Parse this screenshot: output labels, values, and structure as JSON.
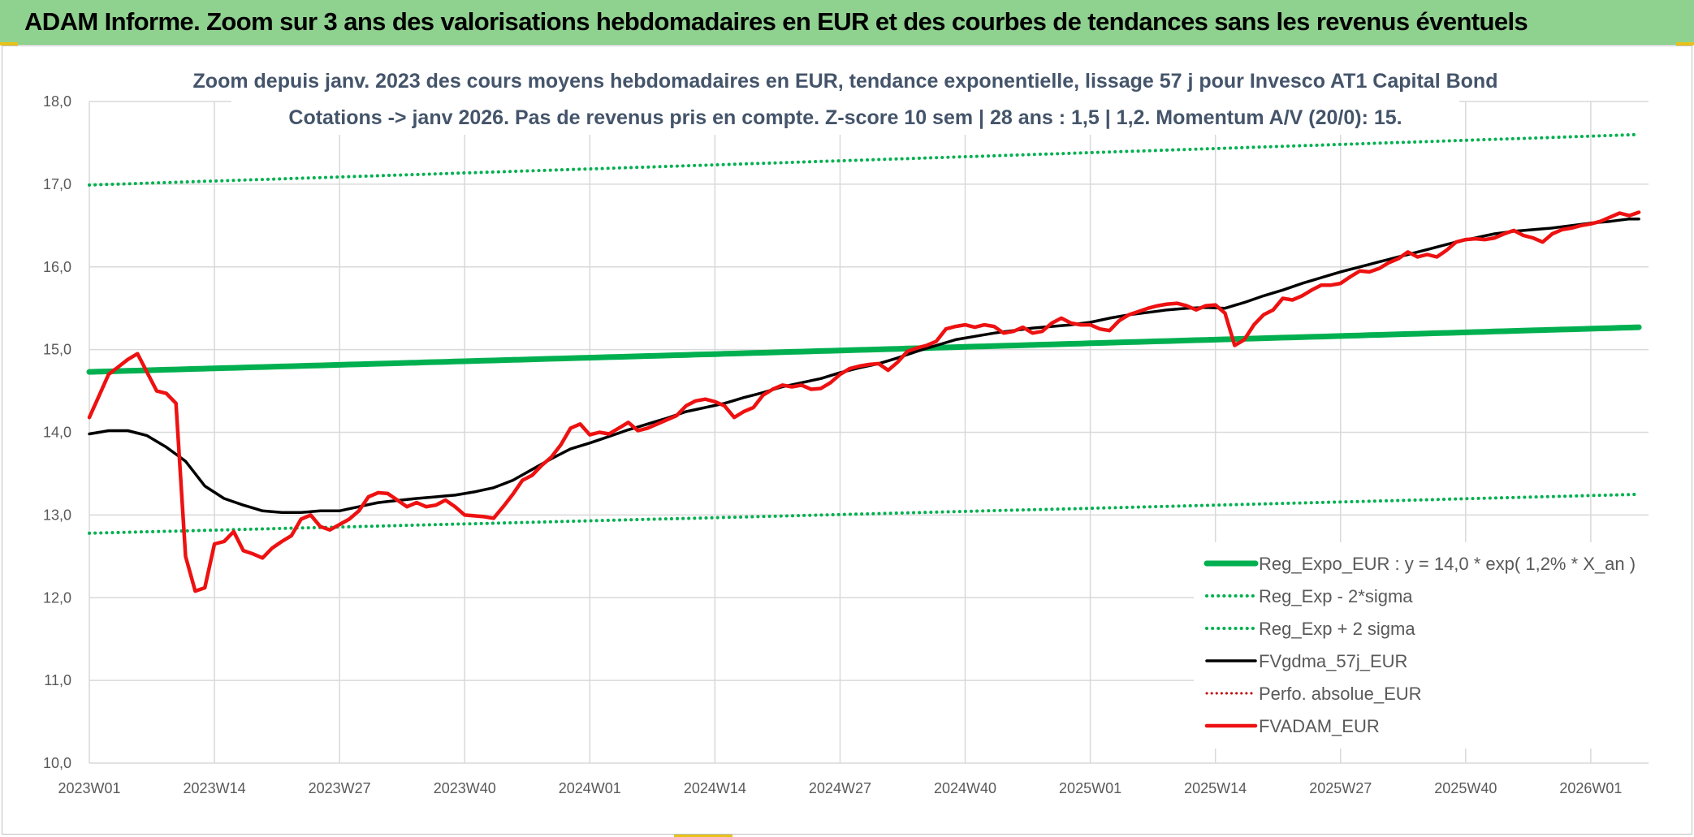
{
  "header": {
    "title": "ADAM Informe. Zoom sur 3 ans des valorisations hebdomadaires en EUR et des courbes de tendances sans les revenus éventuels"
  },
  "chart_data": {
    "type": "line",
    "title_line1": "Zoom depuis janv. 2023 des cours moyens hebdomadaires en EUR, tendance exponentielle, lissage 57 j pour Invesco AT1 Capital Bond",
    "title_line2": "Cotations -> janv 2026. Pas de revenus pris en compte. Z-score 10 sem | 28 ans : 1,5 | 1,2. Momentum A/V (20/0): 15.",
    "ylim": [
      10.0,
      18.0
    ],
    "y_ticks": [
      "10,0",
      "11,0",
      "12,0",
      "13,0",
      "14,0",
      "15,0",
      "16,0",
      "17,0",
      "18,0"
    ],
    "x_count": 162,
    "x_ticks": [
      {
        "i": 0,
        "label": "2023W01"
      },
      {
        "i": 13,
        "label": "2023W14"
      },
      {
        "i": 26,
        "label": "2023W27"
      },
      {
        "i": 39,
        "label": "2023W40"
      },
      {
        "i": 52,
        "label": "2024W01"
      },
      {
        "i": 65,
        "label": "2024W14"
      },
      {
        "i": 78,
        "label": "2024W27"
      },
      {
        "i": 91,
        "label": "2024W40"
      },
      {
        "i": 104,
        "label": "2025W01"
      },
      {
        "i": 117,
        "label": "2025W14"
      },
      {
        "i": 130,
        "label": "2025W27"
      },
      {
        "i": 143,
        "label": "2025W40"
      },
      {
        "i": 156,
        "label": "2026W01"
      }
    ],
    "trend": {
      "start": 14.73,
      "end": 15.27
    },
    "band_lower": {
      "start": 12.78,
      "end": 13.25
    },
    "band_upper": {
      "start": 16.99,
      "end": 17.6
    },
    "fvadam_keypoints": [
      [
        0,
        14.18
      ],
      [
        2,
        14.7
      ],
      [
        4,
        14.88
      ],
      [
        5,
        14.95
      ],
      [
        7,
        14.5
      ],
      [
        8,
        14.47
      ],
      [
        9,
        14.35
      ],
      [
        10,
        12.5
      ],
      [
        11,
        12.08
      ],
      [
        12,
        12.12
      ],
      [
        13,
        12.65
      ],
      [
        14,
        12.68
      ],
      [
        15,
        12.8
      ],
      [
        16,
        12.57
      ],
      [
        17,
        12.53
      ],
      [
        18,
        12.48
      ],
      [
        19,
        12.6
      ],
      [
        20,
        12.68
      ],
      [
        21,
        12.75
      ],
      [
        22,
        12.95
      ],
      [
        23,
        13.0
      ],
      [
        24,
        12.86
      ],
      [
        25,
        12.82
      ],
      [
        27,
        12.95
      ],
      [
        28,
        13.05
      ],
      [
        29,
        13.22
      ],
      [
        30,
        13.27
      ],
      [
        31,
        13.26
      ],
      [
        32,
        13.18
      ],
      [
        33,
        13.1
      ],
      [
        34,
        13.15
      ],
      [
        35,
        13.1
      ],
      [
        36,
        13.12
      ],
      [
        37,
        13.18
      ],
      [
        38,
        13.1
      ],
      [
        39,
        13.0
      ],
      [
        41,
        12.98
      ],
      [
        42,
        12.96
      ],
      [
        43,
        13.1
      ],
      [
        44,
        13.25
      ],
      [
        45,
        13.42
      ],
      [
        46,
        13.48
      ],
      [
        47,
        13.6
      ],
      [
        48,
        13.7
      ],
      [
        49,
        13.85
      ],
      [
        50,
        14.05
      ],
      [
        51,
        14.1
      ],
      [
        52,
        13.97
      ],
      [
        53,
        14.0
      ],
      [
        54,
        13.98
      ],
      [
        55,
        14.05
      ],
      [
        56,
        14.12
      ],
      [
        57,
        14.02
      ],
      [
        58,
        14.05
      ],
      [
        59,
        14.1
      ],
      [
        60,
        14.15
      ],
      [
        61,
        14.2
      ],
      [
        62,
        14.32
      ],
      [
        63,
        14.38
      ],
      [
        64,
        14.4
      ],
      [
        65,
        14.37
      ],
      [
        66,
        14.32
      ],
      [
        67,
        14.18
      ],
      [
        68,
        14.25
      ],
      [
        69,
        14.3
      ],
      [
        70,
        14.45
      ],
      [
        71,
        14.52
      ],
      [
        72,
        14.57
      ],
      [
        73,
        14.55
      ],
      [
        74,
        14.57
      ],
      [
        75,
        14.52
      ],
      [
        76,
        14.53
      ],
      [
        77,
        14.6
      ],
      [
        78,
        14.7
      ],
      [
        79,
        14.77
      ],
      [
        80,
        14.8
      ],
      [
        81,
        14.82
      ],
      [
        82,
        14.83
      ],
      [
        83,
        14.75
      ],
      [
        84,
        14.85
      ],
      [
        85,
        14.98
      ],
      [
        86,
        15.02
      ],
      [
        87,
        15.05
      ],
      [
        88,
        15.1
      ],
      [
        89,
        15.25
      ],
      [
        90,
        15.28
      ],
      [
        91,
        15.3
      ],
      [
        92,
        15.27
      ],
      [
        93,
        15.3
      ],
      [
        94,
        15.28
      ],
      [
        95,
        15.2
      ],
      [
        96,
        15.22
      ],
      [
        97,
        15.27
      ],
      [
        98,
        15.2
      ],
      [
        99,
        15.22
      ],
      [
        100,
        15.32
      ],
      [
        101,
        15.38
      ],
      [
        102,
        15.32
      ],
      [
        103,
        15.3
      ],
      [
        104,
        15.3
      ],
      [
        105,
        15.25
      ],
      [
        106,
        15.23
      ],
      [
        107,
        15.35
      ],
      [
        108,
        15.42
      ],
      [
        109,
        15.46
      ],
      [
        110,
        15.5
      ],
      [
        111,
        15.53
      ],
      [
        112,
        15.55
      ],
      [
        113,
        15.56
      ],
      [
        114,
        15.53
      ],
      [
        115,
        15.48
      ],
      [
        116,
        15.53
      ],
      [
        117,
        15.54
      ],
      [
        118,
        15.44
      ],
      [
        119,
        15.05
      ],
      [
        120,
        15.12
      ],
      [
        121,
        15.3
      ],
      [
        122,
        15.42
      ],
      [
        123,
        15.48
      ],
      [
        124,
        15.62
      ],
      [
        125,
        15.6
      ],
      [
        126,
        15.65
      ],
      [
        127,
        15.72
      ],
      [
        128,
        15.78
      ],
      [
        129,
        15.78
      ],
      [
        130,
        15.8
      ],
      [
        131,
        15.88
      ],
      [
        132,
        15.95
      ],
      [
        133,
        15.94
      ],
      [
        134,
        15.98
      ],
      [
        135,
        16.05
      ],
      [
        136,
        16.1
      ],
      [
        137,
        16.18
      ],
      [
        138,
        16.12
      ],
      [
        139,
        16.15
      ],
      [
        140,
        16.12
      ],
      [
        141,
        16.2
      ],
      [
        142,
        16.3
      ],
      [
        143,
        16.33
      ],
      [
        144,
        16.34
      ],
      [
        145,
        16.33
      ],
      [
        146,
        16.35
      ],
      [
        147,
        16.4
      ],
      [
        148,
        16.44
      ],
      [
        149,
        16.38
      ],
      [
        150,
        16.35
      ],
      [
        151,
        16.3
      ],
      [
        152,
        16.4
      ],
      [
        153,
        16.45
      ],
      [
        154,
        16.47
      ],
      [
        155,
        16.5
      ],
      [
        156,
        16.52
      ],
      [
        157,
        16.55
      ],
      [
        158,
        16.6
      ],
      [
        159,
        16.65
      ],
      [
        160,
        16.62
      ],
      [
        161,
        16.66
      ]
    ],
    "fvgdma_keypoints": [
      [
        0,
        13.98
      ],
      [
        2,
        14.02
      ],
      [
        4,
        14.02
      ],
      [
        6,
        13.96
      ],
      [
        8,
        13.82
      ],
      [
        10,
        13.65
      ],
      [
        12,
        13.35
      ],
      [
        14,
        13.2
      ],
      [
        16,
        13.12
      ],
      [
        18,
        13.05
      ],
      [
        20,
        13.03
      ],
      [
        22,
        13.03
      ],
      [
        24,
        13.05
      ],
      [
        26,
        13.05
      ],
      [
        28,
        13.1
      ],
      [
        30,
        13.15
      ],
      [
        34,
        13.2
      ],
      [
        38,
        13.24
      ],
      [
        40,
        13.28
      ],
      [
        42,
        13.33
      ],
      [
        44,
        13.42
      ],
      [
        46,
        13.55
      ],
      [
        48,
        13.68
      ],
      [
        50,
        13.8
      ],
      [
        52,
        13.87
      ],
      [
        54,
        13.95
      ],
      [
        56,
        14.03
      ],
      [
        58,
        14.1
      ],
      [
        60,
        14.17
      ],
      [
        62,
        14.25
      ],
      [
        64,
        14.3
      ],
      [
        66,
        14.35
      ],
      [
        68,
        14.42
      ],
      [
        70,
        14.48
      ],
      [
        72,
        14.55
      ],
      [
        74,
        14.6
      ],
      [
        76,
        14.65
      ],
      [
        78,
        14.72
      ],
      [
        80,
        14.78
      ],
      [
        82,
        14.83
      ],
      [
        84,
        14.9
      ],
      [
        86,
        14.98
      ],
      [
        88,
        15.05
      ],
      [
        90,
        15.12
      ],
      [
        92,
        15.16
      ],
      [
        94,
        15.2
      ],
      [
        96,
        15.23
      ],
      [
        98,
        15.26
      ],
      [
        100,
        15.28
      ],
      [
        102,
        15.3
      ],
      [
        104,
        15.33
      ],
      [
        106,
        15.38
      ],
      [
        108,
        15.42
      ],
      [
        110,
        15.45
      ],
      [
        112,
        15.48
      ],
      [
        114,
        15.5
      ],
      [
        116,
        15.51
      ],
      [
        118,
        15.5
      ],
      [
        120,
        15.57
      ],
      [
        122,
        15.65
      ],
      [
        124,
        15.72
      ],
      [
        126,
        15.8
      ],
      [
        128,
        15.87
      ],
      [
        130,
        15.94
      ],
      [
        132,
        16.0
      ],
      [
        134,
        16.06
      ],
      [
        136,
        16.12
      ],
      [
        138,
        16.18
      ],
      [
        140,
        16.24
      ],
      [
        142,
        16.3
      ],
      [
        144,
        16.35
      ],
      [
        146,
        16.4
      ],
      [
        148,
        16.43
      ],
      [
        150,
        16.45
      ],
      [
        152,
        16.47
      ],
      [
        154,
        16.5
      ],
      [
        156,
        16.53
      ],
      [
        158,
        16.55
      ],
      [
        160,
        16.58
      ],
      [
        161,
        16.58
      ]
    ],
    "legend": [
      {
        "label": "Reg_Expo_EUR : y = 14,0 * exp( 1,2% *  X_an )",
        "style": "trend"
      },
      {
        "label": "Reg_Exp - 2*sigma",
        "style": "band"
      },
      {
        "label": "Reg_Exp + 2 sigma",
        "style": "band"
      },
      {
        "label": "FVgdma_57j_EUR",
        "style": "black"
      },
      {
        "label": "Perfo. absolue_EUR",
        "style": "reddot"
      },
      {
        "label": "FVADAM_EUR",
        "style": "red"
      }
    ],
    "colors": {
      "trend": "#00b050",
      "band": "#00b050",
      "fvgdma": "#000000",
      "perfo": "#c00000",
      "fvadam": "#ee1111",
      "grid": "#d9d9d9"
    }
  }
}
